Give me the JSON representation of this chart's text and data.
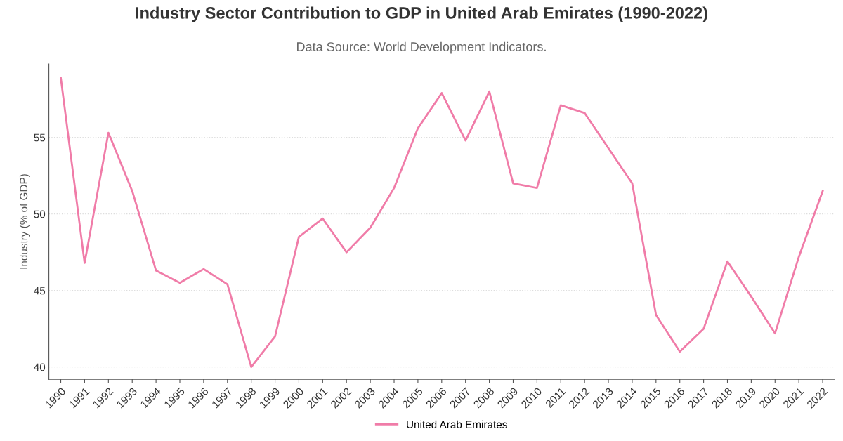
{
  "chart_data": {
    "type": "line",
    "title": "Industry Sector Contribution to GDP in United Arab Emirates (1990-2022)",
    "subtitle": "Data Source: World Development Indicators.",
    "ylabel": "Industry (% of GDP)",
    "categories": [
      "1990",
      "1991",
      "1992",
      "1993",
      "1994",
      "1995",
      "1996",
      "1997",
      "1998",
      "1999",
      "2000",
      "2001",
      "2002",
      "2003",
      "2004",
      "2005",
      "2006",
      "2007",
      "2008",
      "2009",
      "2010",
      "2011",
      "2012",
      "2013",
      "2014",
      "2015",
      "2016",
      "2017",
      "2018",
      "2019",
      "2020",
      "2021",
      "2022"
    ],
    "series": [
      {
        "name": "United Arab Emirates",
        "color": "#f07ca8",
        "values": [
          58.9,
          46.8,
          55.3,
          51.5,
          46.3,
          45.5,
          46.4,
          45.4,
          40.0,
          42.0,
          48.5,
          49.7,
          47.5,
          49.1,
          51.7,
          55.6,
          57.9,
          54.8,
          58.0,
          52.0,
          51.7,
          57.1,
          56.6,
          54.3,
          52.0,
          43.4,
          41.0,
          42.5,
          46.9,
          44.6,
          42.2,
          47.2,
          51.5
        ]
      }
    ],
    "ylim": [
      39.2,
      59.8
    ],
    "yticks": [
      40,
      45,
      50,
      55
    ],
    "grid": "y",
    "legend": "bottom",
    "marker": "none",
    "line_style": "solid"
  }
}
